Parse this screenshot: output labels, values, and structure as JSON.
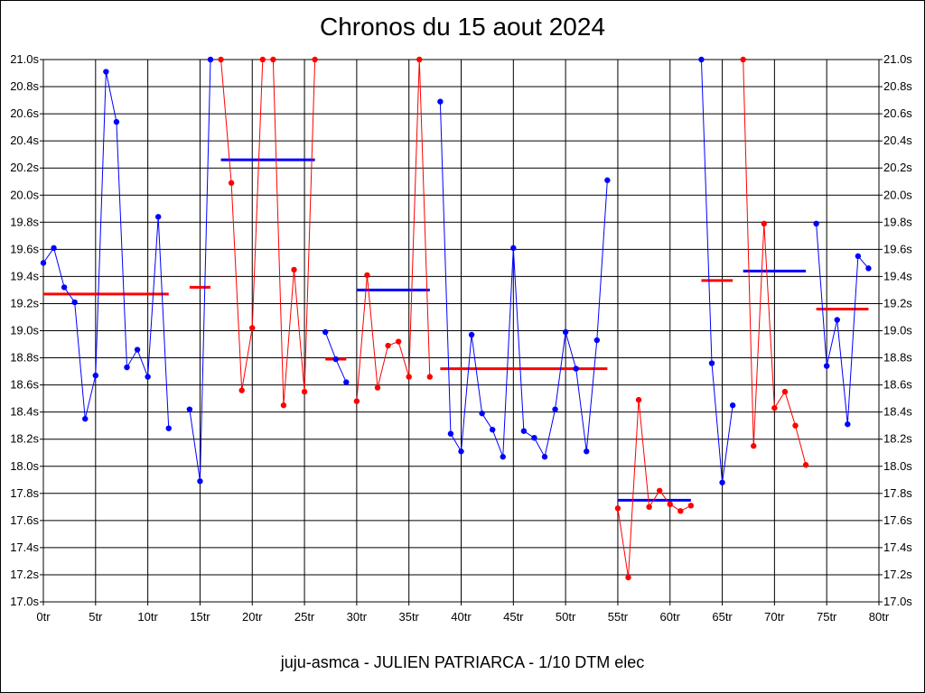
{
  "chart_data": {
    "type": "line",
    "title": "Chronos du 15 aout 2024",
    "subtitle": "juju-asmca - JULIEN PATRIARCA - 1/10 DTM elec",
    "xlim": [
      0,
      80
    ],
    "ylim": [
      17.0,
      21.0
    ],
    "grid": true,
    "x_ticks": [
      "0tr",
      "5tr",
      "10tr",
      "15tr",
      "20tr",
      "25tr",
      "30tr",
      "35tr",
      "40tr",
      "45tr",
      "50tr",
      "55tr",
      "60tr",
      "65tr",
      "70tr",
      "75tr",
      "80tr"
    ],
    "y_ticks": [
      "21.0s",
      "20.8s",
      "20.6s",
      "20.4s",
      "20.2s",
      "20.0s",
      "19.8s",
      "19.6s",
      "19.4s",
      "19.2s",
      "19.0s",
      "18.8s",
      "18.6s",
      "18.4s",
      "18.2s",
      "18.0s",
      "17.8s",
      "17.6s",
      "17.4s",
      "17.2s",
      "17.0s"
    ],
    "y_tick_values": [
      21.0,
      20.8,
      20.6,
      20.4,
      20.2,
      20.0,
      19.8,
      19.6,
      19.4,
      19.2,
      19.0,
      18.8,
      18.6,
      18.4,
      18.2,
      18.0,
      17.8,
      17.6,
      17.4,
      17.2,
      17.0
    ],
    "series": [
      {
        "color": "#0000ff",
        "points": [
          [
            0,
            19.5
          ],
          [
            1,
            19.61
          ],
          [
            2,
            19.32
          ],
          [
            3,
            19.21
          ],
          [
            4,
            18.35
          ],
          [
            5,
            18.67
          ],
          [
            6,
            20.91
          ],
          [
            7,
            20.54
          ],
          [
            8,
            18.73
          ],
          [
            9,
            18.86
          ],
          [
            10,
            18.66
          ],
          [
            11,
            19.84
          ],
          [
            12,
            18.28
          ]
        ]
      },
      {
        "color": "#0000ff",
        "points": [
          [
            14,
            18.42
          ],
          [
            15,
            17.89
          ],
          [
            16,
            21.0
          ]
        ]
      },
      {
        "color": "#ff0000",
        "points": [
          [
            17,
            21.0
          ],
          [
            18,
            20.09
          ],
          [
            19,
            18.56
          ],
          [
            20,
            19.02
          ],
          [
            21,
            21.0
          ],
          [
            22,
            21.0
          ],
          [
            23,
            18.45
          ],
          [
            24,
            19.45
          ],
          [
            25,
            18.55
          ],
          [
            26,
            21.0
          ]
        ]
      },
      {
        "color": "#0000ff",
        "points": [
          [
            27,
            18.99
          ],
          [
            28,
            18.79
          ],
          [
            29,
            18.62
          ]
        ]
      },
      {
        "color": "#ff0000",
        "points": [
          [
            30,
            18.48
          ],
          [
            31,
            19.41
          ],
          [
            32,
            18.58
          ],
          [
            33,
            18.89
          ],
          [
            34,
            18.92
          ],
          [
            35,
            18.66
          ],
          [
            36,
            21.0
          ],
          [
            37,
            18.66
          ]
        ]
      },
      {
        "color": "#0000ff",
        "points": [
          [
            38,
            20.69
          ],
          [
            39,
            18.24
          ],
          [
            40,
            18.11
          ],
          [
            41,
            18.97
          ],
          [
            42,
            18.39
          ],
          [
            43,
            18.27
          ],
          [
            44,
            18.07
          ],
          [
            45,
            19.61
          ],
          [
            46,
            18.26
          ],
          [
            47,
            18.21
          ],
          [
            48,
            18.07
          ],
          [
            49,
            18.42
          ],
          [
            50,
            18.99
          ],
          [
            51,
            18.72
          ],
          [
            52,
            18.11
          ],
          [
            53,
            18.93
          ],
          [
            54,
            20.11
          ]
        ]
      },
      {
        "color": "#ff0000",
        "points": [
          [
            55,
            17.69
          ],
          [
            56,
            17.18
          ],
          [
            57,
            18.49
          ],
          [
            58,
            17.7
          ],
          [
            59,
            17.82
          ],
          [
            60,
            17.72
          ],
          [
            61,
            17.67
          ],
          [
            62,
            17.71
          ]
        ]
      },
      {
        "color": "#0000ff",
        "points": [
          [
            63,
            21.0
          ],
          [
            64,
            18.76
          ],
          [
            65,
            17.88
          ],
          [
            66,
            18.45
          ]
        ]
      },
      {
        "color": "#ff0000",
        "points": [
          [
            67,
            21.0
          ],
          [
            68,
            18.15
          ],
          [
            69,
            19.79
          ],
          [
            70,
            18.43
          ],
          [
            71,
            18.55
          ],
          [
            72,
            18.3
          ],
          [
            73,
            18.01
          ]
        ]
      },
      {
        "color": "#0000ff",
        "points": [
          [
            74,
            19.79
          ],
          [
            75,
            18.74
          ],
          [
            76,
            19.08
          ],
          [
            77,
            18.31
          ],
          [
            78,
            19.55
          ],
          [
            79,
            19.46
          ]
        ]
      }
    ],
    "averages": [
      {
        "color": "#ff0000",
        "x": [
          0,
          12
        ],
        "y": 19.27
      },
      {
        "color": "#ff0000",
        "x": [
          14,
          16
        ],
        "y": 19.32
      },
      {
        "color": "#0000ff",
        "x": [
          17,
          26
        ],
        "y": 20.26
      },
      {
        "color": "#ff0000",
        "x": [
          27,
          29
        ],
        "y": 18.79
      },
      {
        "color": "#0000ff",
        "x": [
          30,
          37
        ],
        "y": 19.3
      },
      {
        "color": "#ff0000",
        "x": [
          38,
          54
        ],
        "y": 18.72
      },
      {
        "color": "#0000ff",
        "x": [
          55,
          62
        ],
        "y": 17.75
      },
      {
        "color": "#ff0000",
        "x": [
          63,
          66
        ],
        "y": 19.37
      },
      {
        "color": "#0000ff",
        "x": [
          67,
          73
        ],
        "y": 19.44
      },
      {
        "color": "#ff0000",
        "x": [
          74,
          79
        ],
        "y": 19.16
      }
    ]
  }
}
